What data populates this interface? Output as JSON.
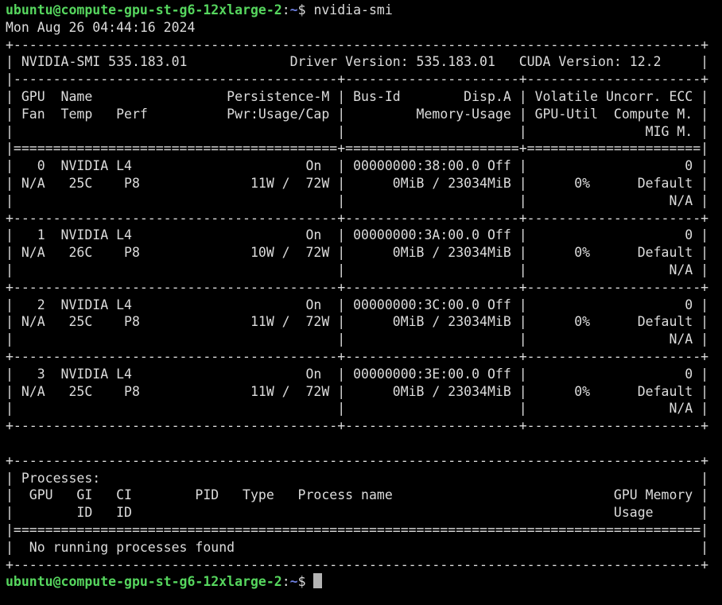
{
  "colors": {
    "background": "#000000",
    "foreground": "#dcdcdc",
    "prompt_green": "#56d65e",
    "path_blue": "#6d7fe0",
    "cursor": "#b4b4b4"
  },
  "prompt": {
    "user_host": "ubuntu@compute-gpu-st-g6-12xlarge-2",
    "separator": ":",
    "path": "~",
    "sigil": "$ ",
    "command": "nvidia-smi"
  },
  "timestamp": "Mon Aug 26 04:44:16 2024",
  "gpu_table_lines": [
    "+---------------------------------------------------------------------------------------+",
    "| NVIDIA-SMI 535.183.01             Driver Version: 535.183.01   CUDA Version: 12.2     |",
    "|-----------------------------------------+----------------------+----------------------+",
    "| GPU  Name                 Persistence-M | Bus-Id        Disp.A | Volatile Uncorr. ECC |",
    "| Fan  Temp   Perf          Pwr:Usage/Cap |         Memory-Usage | GPU-Util  Compute M. |",
    "|                                         |                      |               MIG M. |",
    "|=========================================+======================+======================|",
    "|   0  NVIDIA L4                      On  | 00000000:38:00.0 Off |                    0 |",
    "| N/A   25C    P8              11W /  72W |      0MiB / 23034MiB |      0%      Default |",
    "|                                         |                      |                  N/A |",
    "+-----------------------------------------+----------------------+----------------------+",
    "|   1  NVIDIA L4                      On  | 00000000:3A:00.0 Off |                    0 |",
    "| N/A   26C    P8              10W /  72W |      0MiB / 23034MiB |      0%      Default |",
    "|                                         |                      |                  N/A |",
    "+-----------------------------------------+----------------------+----------------------+",
    "|   2  NVIDIA L4                      On  | 00000000:3C:00.0 Off |                    0 |",
    "| N/A   25C    P8              11W /  72W |      0MiB / 23034MiB |      0%      Default |",
    "|                                         |                      |                  N/A |",
    "+-----------------------------------------+----------------------+----------------------+",
    "|   3  NVIDIA L4                      On  | 00000000:3E:00.0 Off |                    0 |",
    "| N/A   25C    P8              11W /  72W |      0MiB / 23034MiB |      0%      Default |",
    "|                                         |                      |                  N/A |",
    "+-----------------------------------------+----------------------+----------------------+"
  ],
  "processes_table_lines": [
    "+---------------------------------------------------------------------------------------+",
    "| Processes:                                                                            |",
    "|  GPU   GI   CI        PID   Type   Process name                            GPU Memory |",
    "|        ID   ID                                                             Usage      |",
    "|=======================================================================================|",
    "|  No running processes found                                                           |",
    "+---------------------------------------------------------------------------------------+"
  ],
  "nvidia_smi_summary": {
    "smi_version": "535.183.01",
    "driver_version": "535.183.01",
    "cuda_version": "12.2",
    "gpus": [
      {
        "index": "0",
        "name": "NVIDIA L4",
        "persistence_m": "On",
        "bus_id": "00000000:38:00.0",
        "disp_a": "Off",
        "uncorr_ecc": "0",
        "fan": "N/A",
        "temp": "25C",
        "perf": "P8",
        "pwr_usage_cap": "11W /  72W",
        "memory_usage": "0MiB / 23034MiB",
        "gpu_util": "0%",
        "compute_m": "Default",
        "mig_m": "N/A"
      },
      {
        "index": "1",
        "name": "NVIDIA L4",
        "persistence_m": "On",
        "bus_id": "00000000:3A:00.0",
        "disp_a": "Off",
        "uncorr_ecc": "0",
        "fan": "N/A",
        "temp": "26C",
        "perf": "P8",
        "pwr_usage_cap": "10W /  72W",
        "memory_usage": "0MiB / 23034MiB",
        "gpu_util": "0%",
        "compute_m": "Default",
        "mig_m": "N/A"
      },
      {
        "index": "2",
        "name": "NVIDIA L4",
        "persistence_m": "On",
        "bus_id": "00000000:3C:00.0",
        "disp_a": "Off",
        "uncorr_ecc": "0",
        "fan": "N/A",
        "temp": "25C",
        "perf": "P8",
        "pwr_usage_cap": "11W /  72W",
        "memory_usage": "0MiB / 23034MiB",
        "gpu_util": "0%",
        "compute_m": "Default",
        "mig_m": "N/A"
      },
      {
        "index": "3",
        "name": "NVIDIA L4",
        "persistence_m": "On",
        "bus_id": "00000000:3E:00.0",
        "disp_a": "Off",
        "uncorr_ecc": "0",
        "fan": "N/A",
        "temp": "25C",
        "perf": "P8",
        "pwr_usage_cap": "11W /  72W",
        "memory_usage": "0MiB / 23034MiB",
        "gpu_util": "0%",
        "compute_m": "Default",
        "mig_m": "N/A"
      }
    ],
    "processes_status": "No running processes found"
  }
}
